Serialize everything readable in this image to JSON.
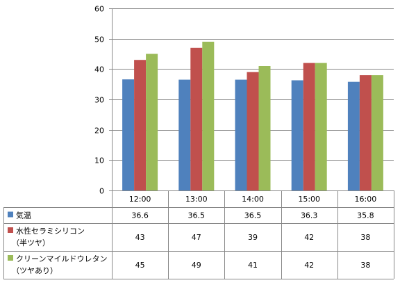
{
  "chart_data": {
    "type": "bar",
    "title": "",
    "xlabel": "",
    "ylabel": "",
    "ylim": [
      0,
      60
    ],
    "yticks": [
      0,
      10,
      20,
      30,
      40,
      50,
      60
    ],
    "categories": [
      "12:00",
      "13:00",
      "14:00",
      "15:00",
      "16:00"
    ],
    "grid": true,
    "legend": "data-table",
    "series": [
      {
        "name": "気温",
        "label_lines": [
          "気温"
        ],
        "color": "#4f81bd",
        "values": [
          36.6,
          36.5,
          36.5,
          36.3,
          35.8
        ],
        "display": [
          "36.6",
          "36.5",
          "36.5",
          "36.3",
          "35.8"
        ]
      },
      {
        "name": "水性セラミシリコン（半ツヤ）",
        "label_lines": [
          "水性セラミシリコン",
          "（半ツヤ）"
        ],
        "color": "#c0504d",
        "values": [
          43,
          47,
          39,
          42,
          38
        ],
        "display": [
          "43",
          "47",
          "39",
          "42",
          "38"
        ]
      },
      {
        "name": "クリーンマイルドウレタン（ツヤあり）",
        "label_lines": [
          "クリーンマイルドウレタン",
          "（ツヤあり）"
        ],
        "color": "#9bbb59",
        "values": [
          45,
          49,
          41,
          42,
          38
        ],
        "display": [
          "45",
          "49",
          "41",
          "42",
          "38"
        ]
      }
    ]
  }
}
